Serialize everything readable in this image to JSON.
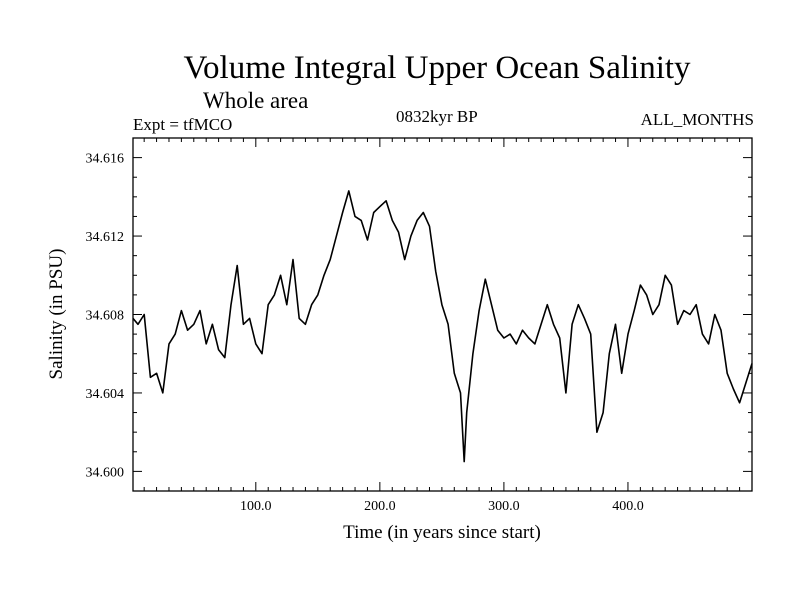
{
  "chart_data": {
    "type": "line",
    "title": "Volume Integral Upper Ocean Salinity",
    "subtitle": "Whole area",
    "experiment_label": "Expt = tfMCO",
    "period_label": "0832kyr BP",
    "months_label": "ALL_MONTHS",
    "xlabel": "Time (in years since start)",
    "ylabel": "Salinity (in PSU)",
    "xlim": [
      1,
      500
    ],
    "ylim": [
      34.599,
      34.617
    ],
    "xticks": [
      100,
      200,
      300,
      400
    ],
    "xtick_labels": [
      "100.0",
      "200.0",
      "300.0",
      "400.0"
    ],
    "yticks": [
      34.6,
      34.604,
      34.608,
      34.612,
      34.616
    ],
    "ytick_labels": [
      "34.600",
      "34.604",
      "34.608",
      "34.612",
      "34.616"
    ],
    "series": [
      {
        "name": "Salinity",
        "x": [
          1,
          5,
          10,
          15,
          20,
          25,
          30,
          35,
          40,
          45,
          50,
          55,
          60,
          65,
          70,
          75,
          80,
          85,
          90,
          95,
          100,
          105,
          110,
          115,
          120,
          125,
          130,
          135,
          140,
          145,
          150,
          155,
          160,
          165,
          170,
          175,
          180,
          185,
          190,
          195,
          200,
          205,
          210,
          215,
          220,
          225,
          230,
          235,
          240,
          245,
          250,
          255,
          260,
          265,
          268,
          270,
          275,
          280,
          285,
          290,
          295,
          300,
          305,
          310,
          315,
          320,
          325,
          330,
          335,
          340,
          345,
          350,
          355,
          360,
          365,
          370,
          375,
          380,
          385,
          390,
          395,
          400,
          405,
          410,
          415,
          420,
          425,
          430,
          435,
          440,
          445,
          450,
          455,
          460,
          465,
          470,
          475,
          480,
          485,
          490,
          495,
          500
        ],
        "values": [
          34.6078,
          34.6075,
          34.608,
          34.6048,
          34.605,
          34.604,
          34.6065,
          34.607,
          34.6082,
          34.6072,
          34.6075,
          34.6082,
          34.6065,
          34.6075,
          34.6062,
          34.6058,
          34.6085,
          34.6105,
          34.6075,
          34.6078,
          34.6065,
          34.606,
          34.6085,
          34.609,
          34.61,
          34.6085,
          34.6108,
          34.6078,
          34.6075,
          34.6085,
          34.609,
          34.61,
          34.6108,
          34.612,
          34.6132,
          34.6143,
          34.613,
          34.6128,
          34.6118,
          34.6132,
          34.6135,
          34.6138,
          34.6128,
          34.6122,
          34.6108,
          34.612,
          34.6128,
          34.6132,
          34.6125,
          34.6102,
          34.6085,
          34.6075,
          34.605,
          34.604,
          34.6005,
          34.603,
          34.606,
          34.6082,
          34.6098,
          34.6085,
          34.6072,
          34.6068,
          34.607,
          34.6065,
          34.6072,
          34.6068,
          34.6065,
          34.6075,
          34.6085,
          34.6075,
          34.6068,
          34.604,
          34.6075,
          34.6085,
          34.6078,
          34.607,
          34.602,
          34.603,
          34.606,
          34.6075,
          34.605,
          34.607,
          34.6082,
          34.6095,
          34.609,
          34.608,
          34.6085,
          34.61,
          34.6095,
          34.6075,
          34.6082,
          34.608,
          34.6085,
          34.607,
          34.6065,
          34.608,
          34.6072,
          34.605,
          34.6042,
          34.6035,
          34.6045,
          34.6055
        ]
      }
    ]
  }
}
